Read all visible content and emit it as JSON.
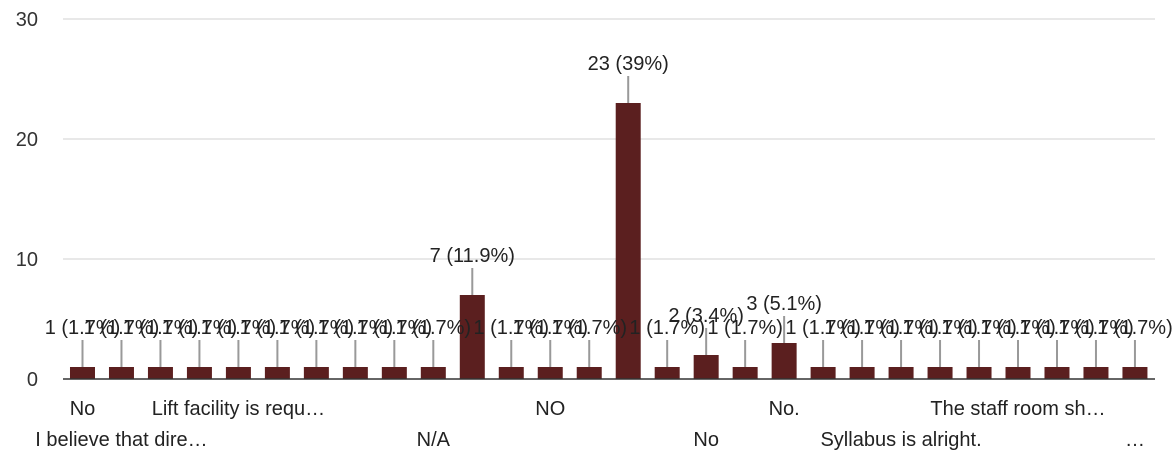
{
  "chart_data": {
    "type": "bar",
    "values": [
      1,
      1,
      1,
      1,
      1,
      1,
      1,
      1,
      1,
      1,
      7,
      1,
      1,
      1,
      23,
      1,
      2,
      1,
      3,
      1,
      1,
      1,
      1,
      1,
      1,
      1,
      1,
      1
    ],
    "data_labels": [
      "1 (1.7%)",
      "1 (1.7%)",
      "1 (1.7%)",
      "1 (1.7%)",
      "1 (1.7%)",
      "1 (1.7%)",
      "1 (1.7%)",
      "1 (1.7%)",
      "1 (1.7%)",
      "1 (1.7%)",
      "7 (11.9%)",
      "1 (1.7%)",
      "1 (1.7%)",
      "1 (1.7%)",
      "23 (39%)",
      "1 (1.7%)",
      "2 (3.4%)",
      "1 (1.7%)",
      "3 (5.1%)",
      "1 (1.7%)",
      "1 (1.7%)",
      "1 (1.7%)",
      "1 (1.7%)",
      "1 (1.7%)",
      "1 (1.7%)",
      "1 (1.7%)",
      "1 (1.7%)",
      "1 (1.7%)"
    ],
    "x_tick_labels": [
      {
        "index": 0,
        "text": "No",
        "row": 1
      },
      {
        "index": 1,
        "text": "I believe that dire…",
        "row": 2
      },
      {
        "index": 4,
        "text": "Lift facility is requ…",
        "row": 1
      },
      {
        "index": 9,
        "text": "N/A",
        "row": 2
      },
      {
        "index": 12,
        "text": "NO",
        "row": 1
      },
      {
        "index": 16,
        "text": "No",
        "row": 2
      },
      {
        "index": 18,
        "text": "No.",
        "row": 1
      },
      {
        "index": 21,
        "text": "Syllabus is alright.",
        "row": 2
      },
      {
        "index": 24,
        "text": "The staff room sh…",
        "row": 1
      },
      {
        "index": 27,
        "text": "…",
        "row": 2
      }
    ],
    "y_ticks": [
      0,
      10,
      20,
      30
    ],
    "ylim": [
      0,
      30
    ],
    "grid": true,
    "bar_color": "#5b1f1f",
    "grid_color": "#e0e0e0",
    "leader_color": "#999999"
  }
}
